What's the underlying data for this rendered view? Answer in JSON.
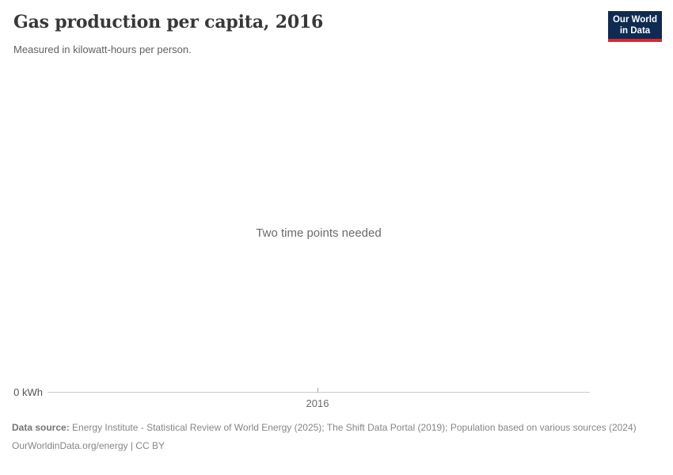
{
  "header": {
    "title": "Gas production per capita, 2016",
    "subtitle": "Measured in kilowatt-hours per person."
  },
  "logo": {
    "line1": "Our World",
    "line2": "in Data",
    "bg_color": "#0e2b52",
    "accent_color": "#d7282f"
  },
  "chart_data": {
    "type": "line",
    "title": "Gas production per capita, 2016",
    "subtitle": "Measured in kilowatt-hours per person.",
    "series": [],
    "empty_state_message": "Two time points needed",
    "x_tick_labels": [
      "2016"
    ],
    "y_tick_labels": [
      "0 kWh"
    ],
    "xlim": [
      2016,
      2016
    ],
    "ylim": [
      0,
      0
    ],
    "grid": false,
    "legend": "none",
    "note": "Empty chart state: no data series rendered, only axis baseline with single year tick"
  },
  "axis": {
    "y_zero_label": "0 kWh",
    "x_tick_label": "2016",
    "line_color": "#cccccc"
  },
  "message": {
    "text": "Two time points needed"
  },
  "footer": {
    "data_source_label": "Data source:",
    "data_source_text": "Energy Institute - Statistical Review of World Energy (2025); The Shift Data Portal (2019); Population based on various sources (2024)",
    "license_text": "OurWorldinData.org/energy | CC BY"
  }
}
